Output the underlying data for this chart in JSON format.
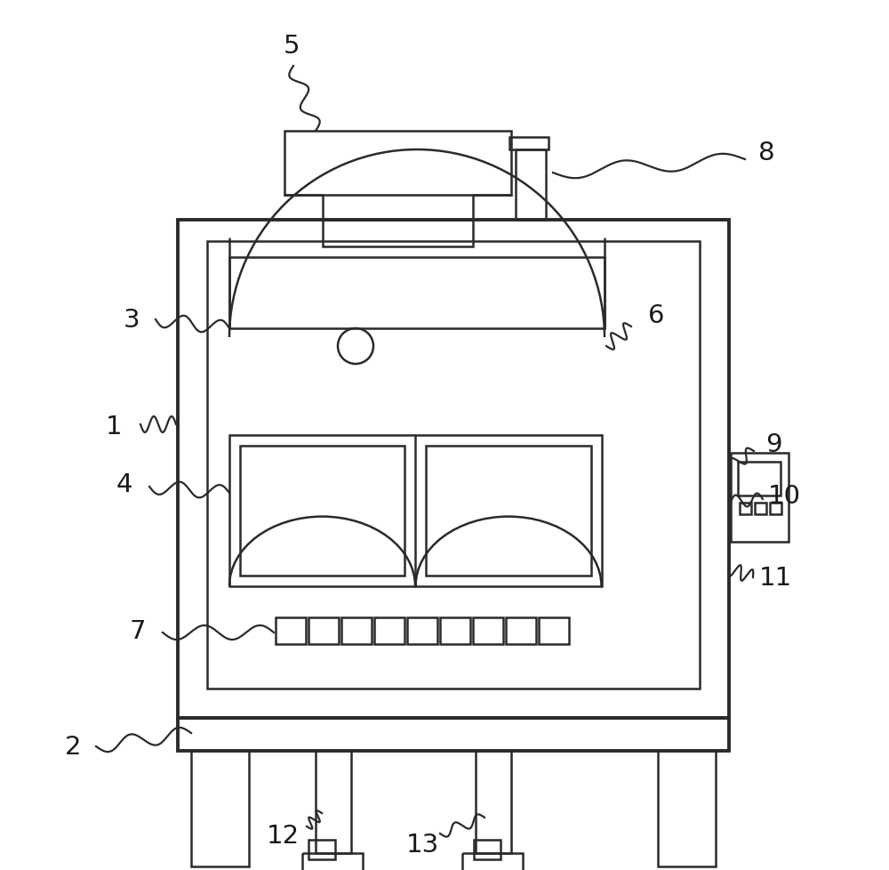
{
  "bg_color": "#ffffff",
  "lc": "#2a2a2a",
  "lw": 1.8,
  "tlw": 2.8,
  "fig_w": 10.0,
  "fig_h": 9.79
}
